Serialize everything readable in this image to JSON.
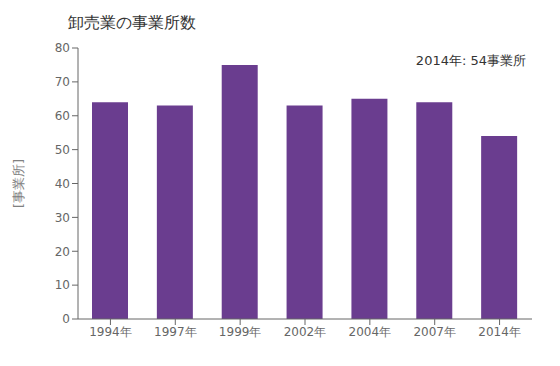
{
  "chart_data": {
    "type": "bar",
    "title": "卸売業の事業所数",
    "y_label": "[事業所]",
    "annotation": "2014年: 54事業所",
    "categories": [
      "1994年",
      "1997年",
      "1999年",
      "2002年",
      "2004年",
      "2007年",
      "2014年"
    ],
    "values": [
      64,
      63,
      75,
      63,
      65,
      64,
      54
    ],
    "color": "#6a3d8f",
    "ylim": [
      0,
      80
    ],
    "yticks": [
      0,
      10,
      20,
      30,
      40,
      50,
      60,
      70,
      80
    ],
    "grid": false
  }
}
